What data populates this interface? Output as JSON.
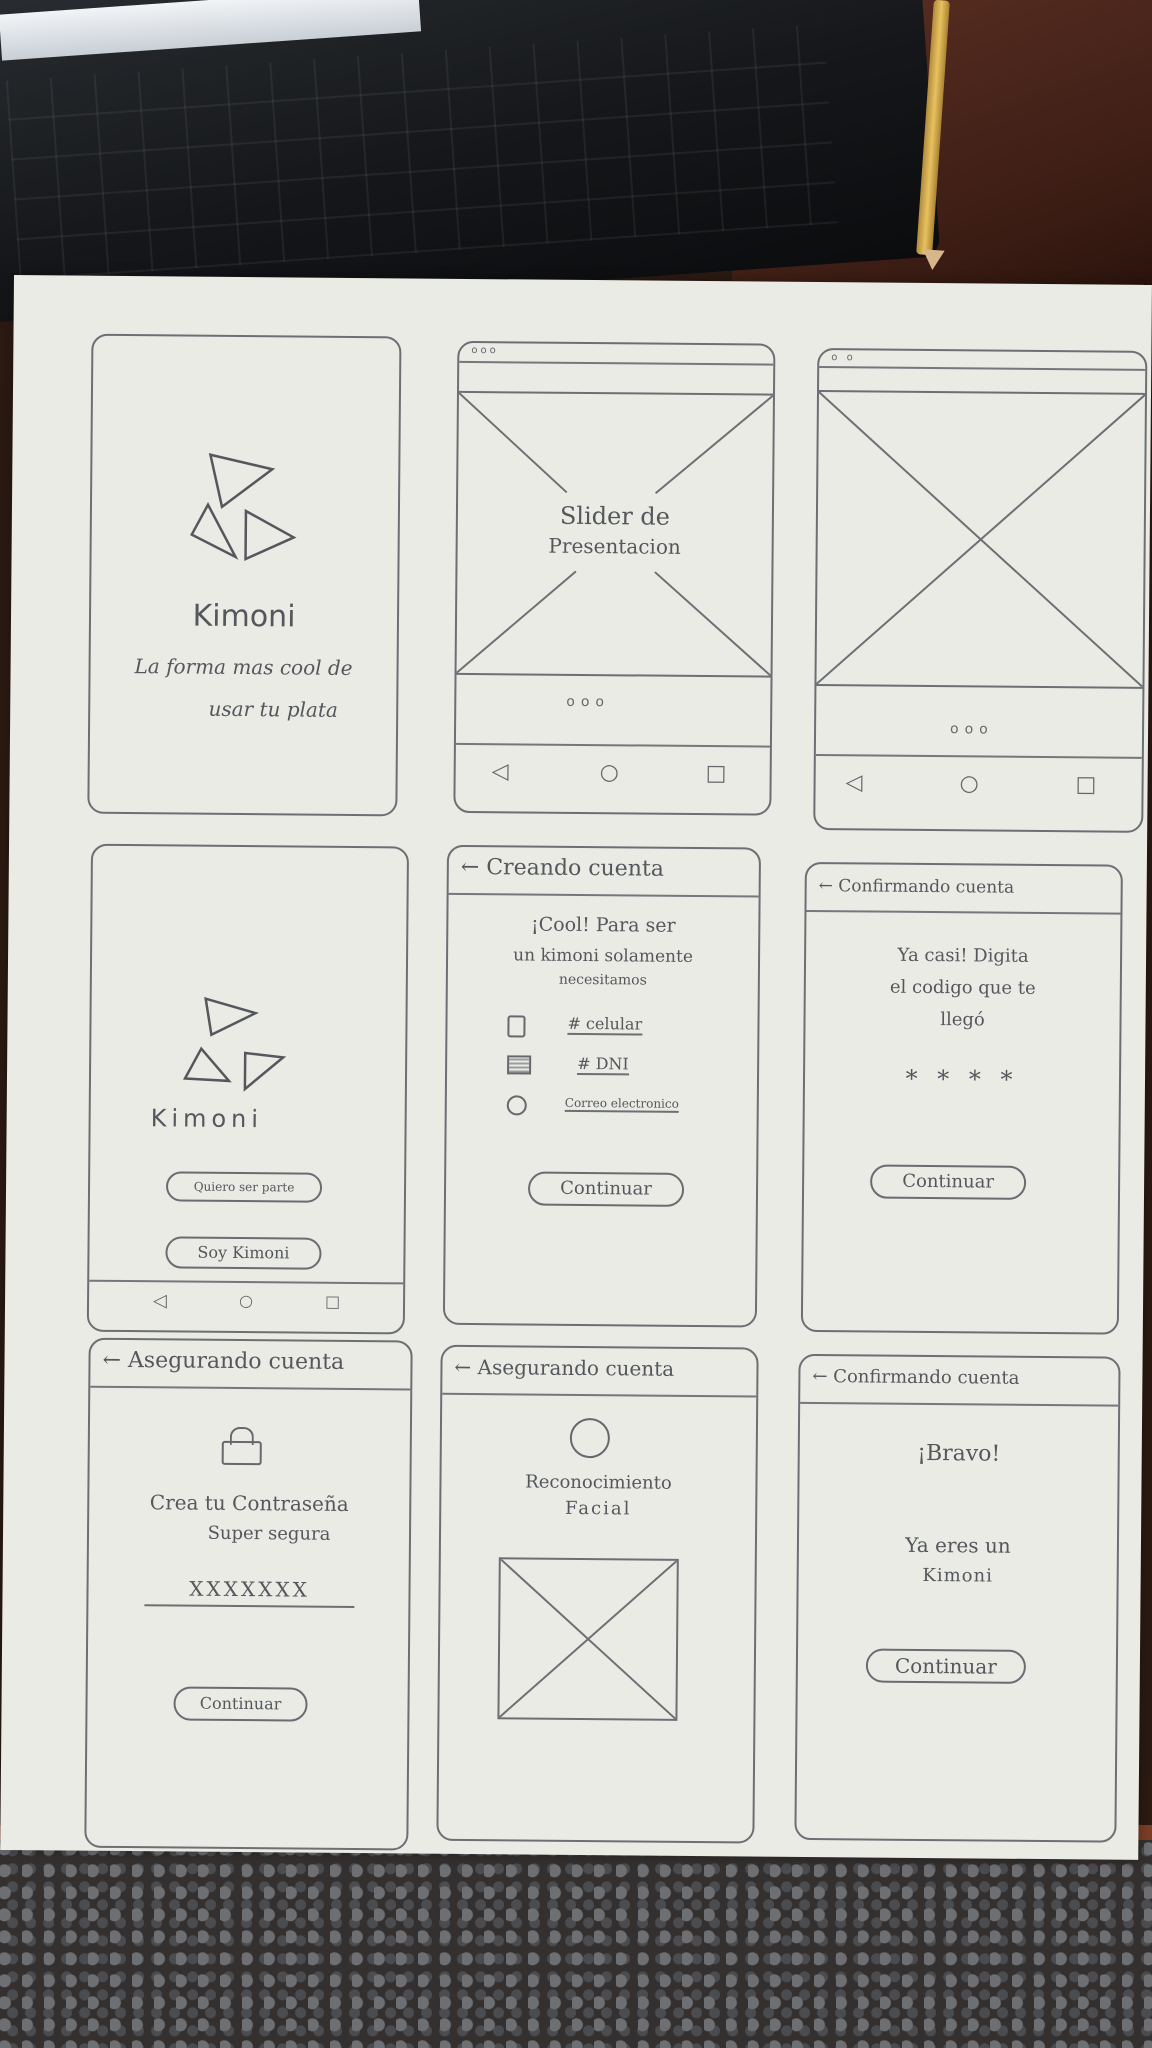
{
  "brand": {
    "name": "Kimoni",
    "tagline": "La forma mas cool de usar tu plata",
    "tagline_line1": "La forma mas cool de",
    "tagline_line2": "usar tu plata"
  },
  "onboarding": {
    "slider_label_line1": "Slider de",
    "slider_label_line2": "Presentacion",
    "pager_dots": "ooo",
    "nav_back": "◁",
    "nav_home": "○",
    "nav_recent": "□"
  },
  "welcome": {
    "join_button": "Quiero ser parte",
    "login_button": "Soy Kimoni"
  },
  "create_account": {
    "header": "← Creando cuenta",
    "message_line1": "¡Cool! Para ser",
    "message_line2": "un kimoni solamente",
    "message_line3": "necesitamos",
    "options": [
      "# celular",
      "# DNI",
      "Correo electronico"
    ],
    "continue_button": "Continuar"
  },
  "confirm_code": {
    "header": "← Confirmando cuenta",
    "message_line1": "Ya casi! Digita",
    "message_line2": "el codigo que te",
    "message_line3": "llegó",
    "code_mask": "* * * *",
    "continue_button": "Continuar"
  },
  "password": {
    "header": "← Asegurando cuenta",
    "message_line1": "Crea tu Contraseña",
    "message_line2": "Super segura",
    "password_mask": "XXXXXXX",
    "continue_button": "Continuar"
  },
  "face_id": {
    "header": "← Asegurando cuenta",
    "message_line1": "Reconocimiento",
    "message_line2": "Facial"
  },
  "done": {
    "header": "← Confirmando cuenta",
    "message_line1": "¡Bravo!",
    "message_line2": "Ya eres un",
    "message_line3": "Kimoni",
    "continue_button": "Continuar"
  }
}
